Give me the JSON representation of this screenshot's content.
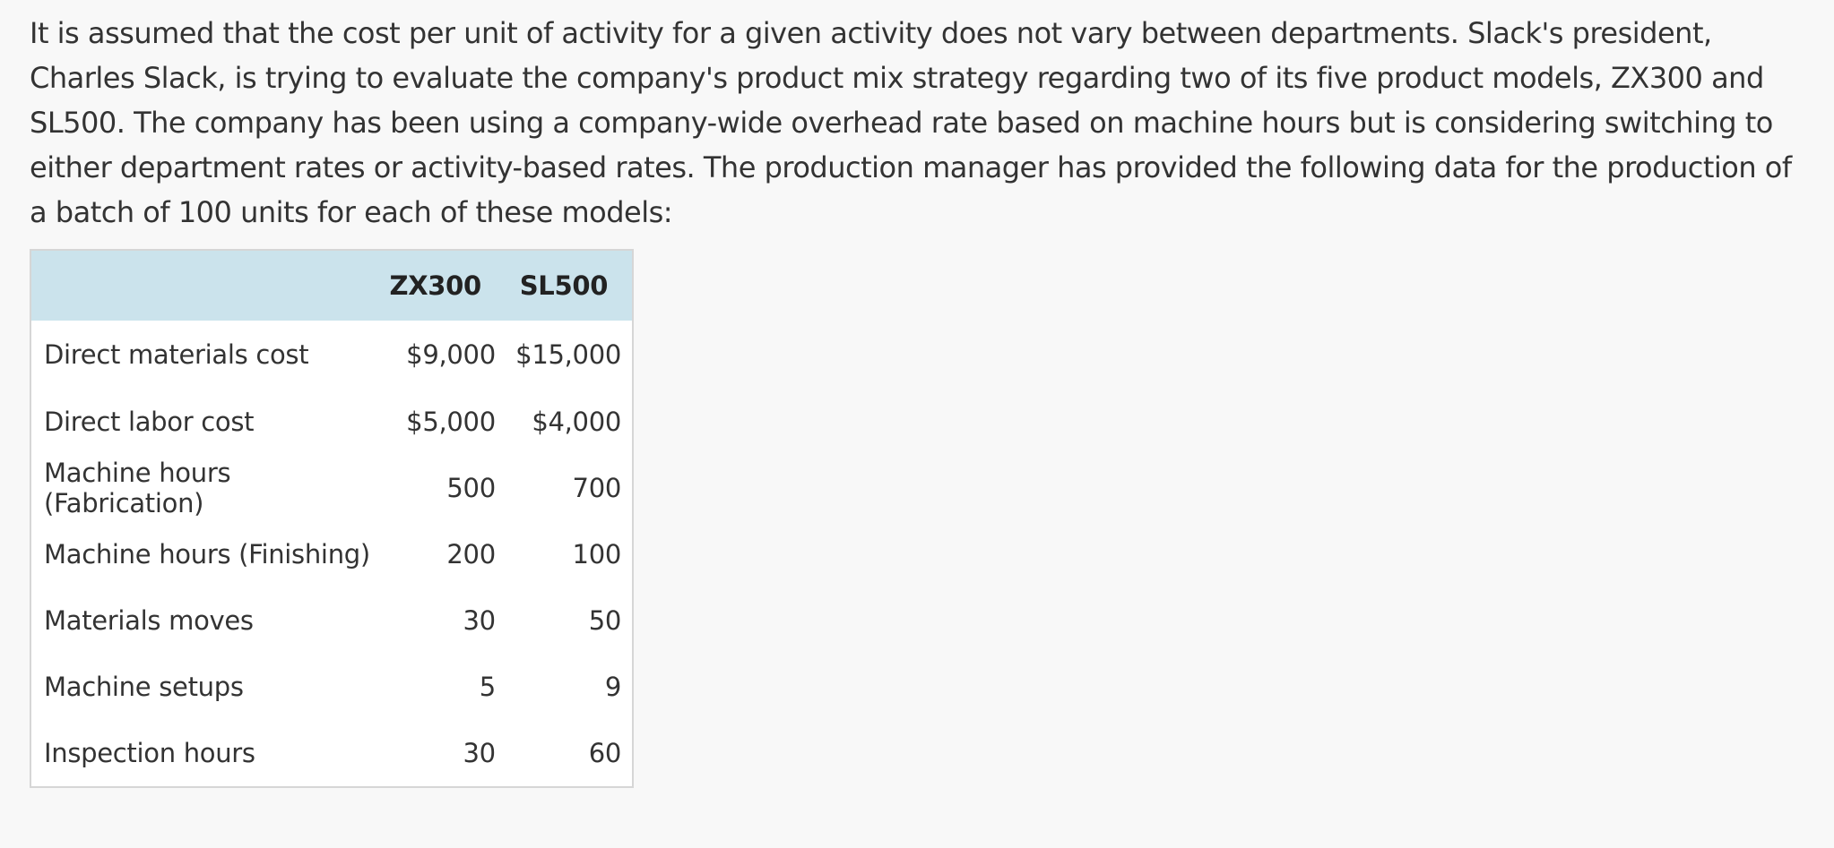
{
  "intro_text": "It is assumed that the cost per unit of activity for a given activity does not vary between departments. Slack's president, Charles Slack, is trying to evaluate the company's product mix strategy regarding two of its five product models, ZX300 and SL500. The company has been using a company-wide overhead rate based on machine hours but is considering switching to either department rates or activity-based rates. The production manager has provided the following data for the production of a batch of 100 units for each of these models:",
  "table": {
    "headers": [
      "",
      "ZX300",
      "SL500"
    ],
    "rows": [
      {
        "label": "Direct materials cost",
        "zx300": "$9,000",
        "sl500": "$15,000"
      },
      {
        "label": "Direct labor cost",
        "zx300": "$5,000",
        "sl500": "$4,000"
      },
      {
        "label": "Machine hours (Fabrication)",
        "zx300": "500",
        "sl500": "700"
      },
      {
        "label": "Machine hours (Finishing)",
        "zx300": "200",
        "sl500": "100"
      },
      {
        "label": "Materials moves",
        "zx300": "30",
        "sl500": "50"
      },
      {
        "label": "Machine setups",
        "zx300": "5",
        "sl500": "9"
      },
      {
        "label": "Inspection hours",
        "zx300": "30",
        "sl500": "60"
      }
    ]
  },
  "colors": {
    "header_background": "#cbe3ec",
    "page_background": "#f8f8f8",
    "text": "#333333"
  }
}
